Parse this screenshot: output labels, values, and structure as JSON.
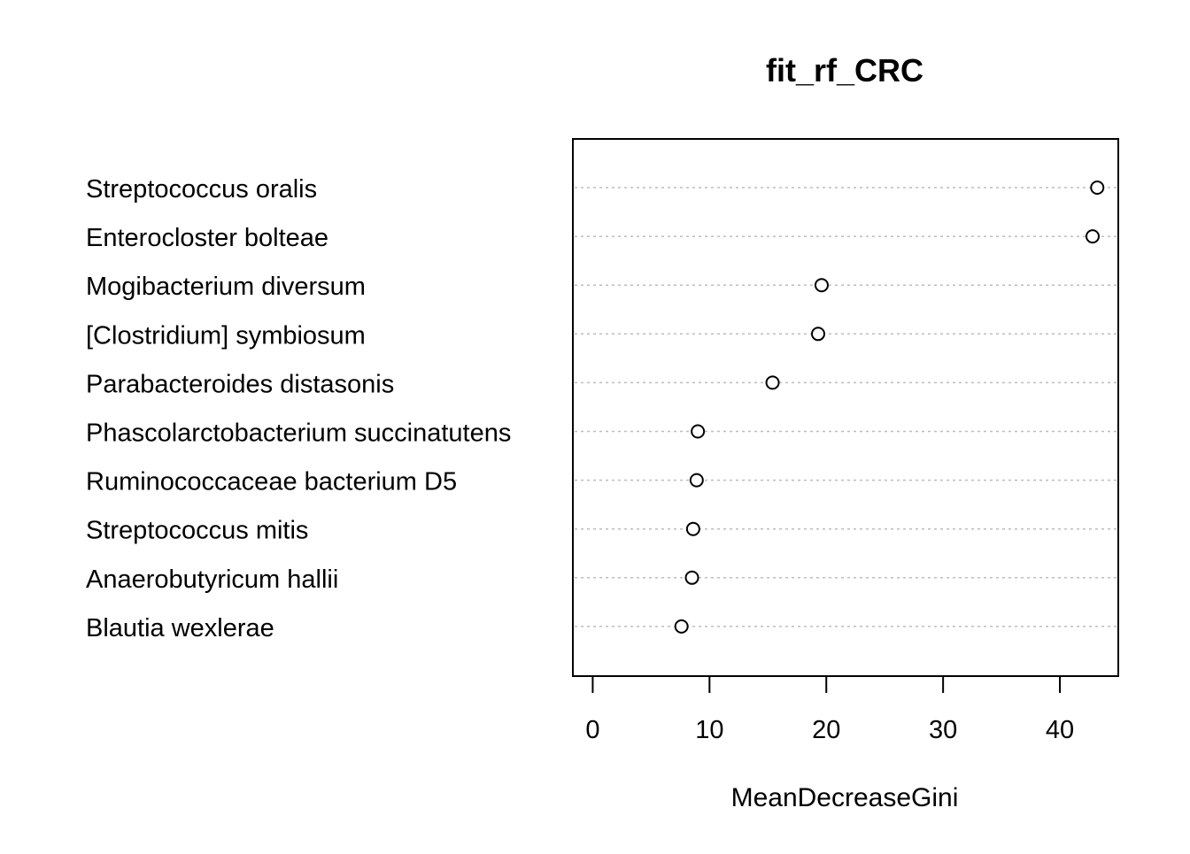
{
  "chart_data": {
    "type": "scatter",
    "subtype": "dotchart",
    "title": "fit_rf_CRC",
    "xlabel": "MeanDecreaseGini",
    "ylabel": "",
    "xlim": [
      -1.7,
      45
    ],
    "xticks": [
      0,
      10,
      20,
      30,
      40
    ],
    "grid": "dotted horizontal guide per category",
    "categories": [
      "Streptococcus oralis",
      "Enterocloster bolteae",
      "Mogibacterium diversum",
      "[Clostridium] symbiosum",
      "Parabacteroides distasonis",
      "Phascolarctobacterium succinatutens",
      "Ruminococcaceae bacterium D5",
      "Streptococcus mitis",
      "Anaerobutyricum hallii",
      "Blautia wexlerae"
    ],
    "values": [
      43.2,
      42.8,
      19.6,
      19.3,
      15.4,
      9.0,
      8.9,
      8.6,
      8.5,
      7.6
    ]
  }
}
